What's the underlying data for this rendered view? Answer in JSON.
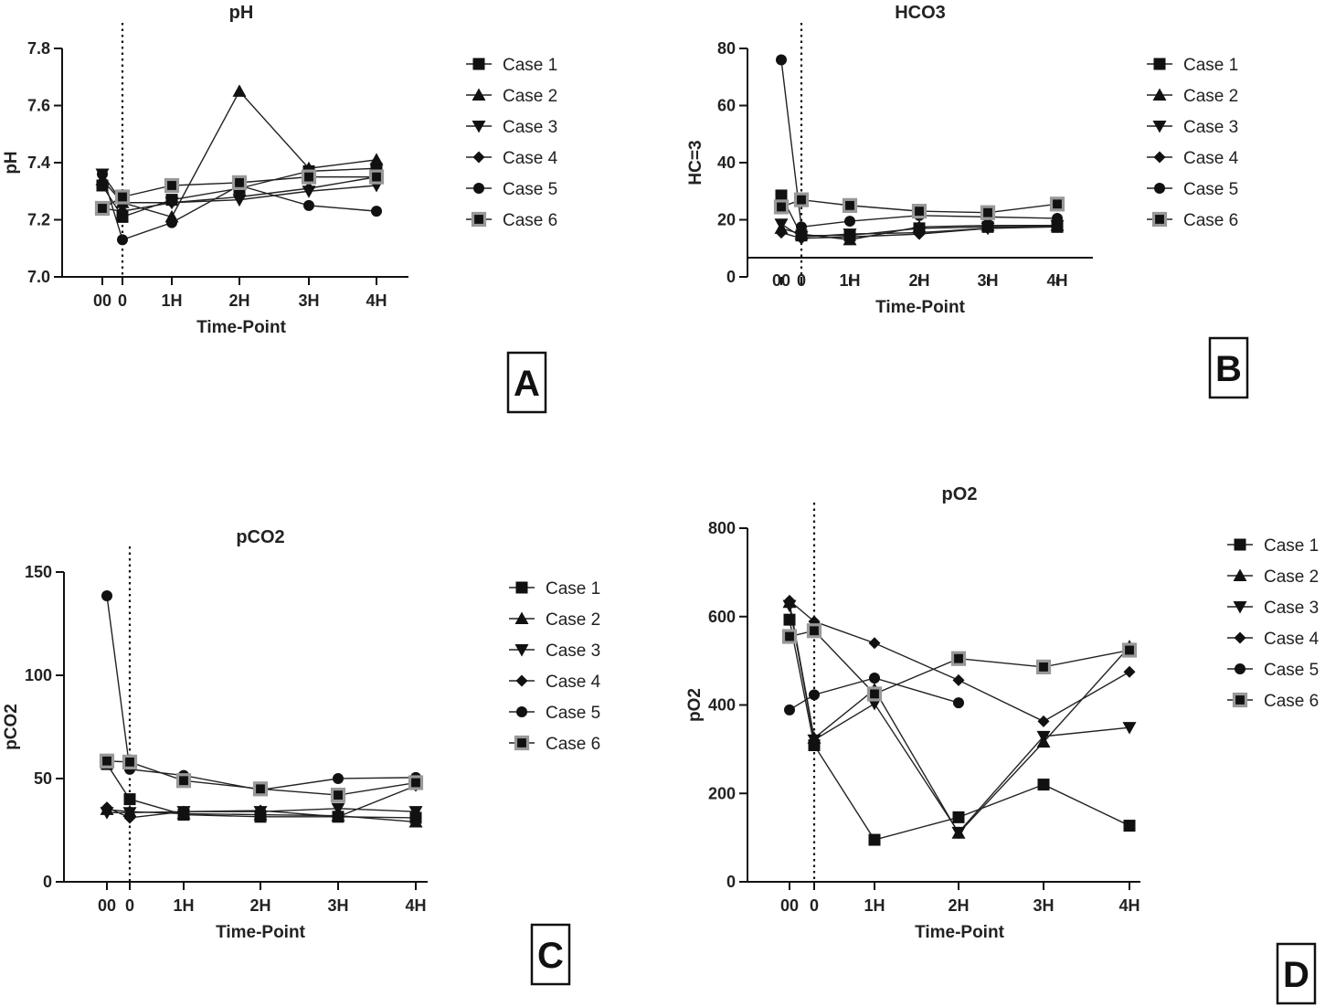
{
  "panel_labels": [
    "A",
    "B",
    "C",
    "D"
  ],
  "colors": {
    "marker": "#111111",
    "line": "#222222",
    "case6_fill": "#999999"
  },
  "chart_data": [
    {
      "type": "line",
      "title": "pH",
      "ylabel": "pH",
      "xlabel": "Time-Point",
      "categories": [
        "00",
        "0",
        "1H",
        "2H",
        "3H",
        "4H"
      ],
      "ylim": [
        7.0,
        7.8
      ],
      "yticks": [
        "7.0",
        "7.2",
        "7.4",
        "7.6",
        "7.8"
      ],
      "reference_line": "dotted vertical between 00 and 0",
      "series": [
        {
          "name": "Case 1",
          "marker": "square",
          "values": [
            7.32,
            7.21,
            7.27,
            7.31,
            7.37,
            7.38
          ]
        },
        {
          "name": "Case 2",
          "marker": "triangle-up",
          "values": [
            7.34,
            7.26,
            7.21,
            7.65,
            7.38,
            7.41
          ]
        },
        {
          "name": "Case 3",
          "marker": "triangle-down",
          "values": [
            7.36,
            7.26,
            7.26,
            7.27,
            7.3,
            7.32
          ]
        },
        {
          "name": "Case 4",
          "marker": "diamond",
          "values": [
            7.24,
            7.23,
            7.26,
            7.28,
            7.31,
            7.35
          ]
        },
        {
          "name": "Case 5",
          "marker": "circle",
          "values": [
            7.36,
            7.13,
            7.19,
            7.32,
            7.25,
            7.23
          ]
        },
        {
          "name": "Case 6",
          "marker": "square-gray",
          "values": [
            7.24,
            7.28,
            7.32,
            7.33,
            7.35,
            7.35
          ]
        }
      ]
    },
    {
      "type": "line",
      "title": "HCO3",
      "ylabel": "HC=3",
      "xlabel": "Time-Point",
      "categories": [
        "00",
        "0",
        "1H",
        "2H",
        "3H",
        "4H"
      ],
      "ylim": [
        0,
        80
      ],
      "yticks": [
        "0",
        "20",
        "40",
        "60",
        "80"
      ],
      "reference_line": "dotted vertical between 00 and 0",
      "series": [
        {
          "name": "Case 1",
          "marker": "square",
          "values": [
            28.5,
            14.5,
            14.5,
            17,
            17.5,
            17.5
          ]
        },
        {
          "name": "Case 2",
          "marker": "triangle-up",
          "values": [
            17,
            15,
            13,
            17.5,
            18,
            18
          ]
        },
        {
          "name": "Case 3",
          "marker": "triangle-down",
          "values": [
            18.5,
            14,
            15,
            15.5,
            17,
            18
          ]
        },
        {
          "name": "Case 4",
          "marker": "diamond",
          "values": [
            15.5,
            13.5,
            14,
            15,
            17,
            17.5
          ]
        },
        {
          "name": "Case 5",
          "marker": "circle",
          "values": [
            76,
            17.5,
            19.5,
            21.5,
            21,
            20.5
          ]
        },
        {
          "name": "Case 6",
          "marker": "square-gray",
          "values": [
            24.5,
            27,
            25,
            23,
            22.5,
            25.5
          ]
        }
      ]
    },
    {
      "type": "line",
      "title": "pCO2",
      "ylabel": "pCO2",
      "xlabel": "Time-Point",
      "categories": [
        "00",
        "0",
        "1H",
        "2H",
        "3H",
        "4H"
      ],
      "ylim": [
        0,
        150
      ],
      "yticks": [
        "0",
        "50",
        "100",
        "150"
      ],
      "reference_line": "dotted vertical between 00 and 0",
      "series": [
        {
          "name": "Case 1",
          "marker": "square",
          "values": [
            57,
            40,
            32.5,
            31.5,
            31.5,
            31
          ]
        },
        {
          "name": "Case 2",
          "marker": "triangle-up",
          "values": [
            35,
            34,
            33,
            32.5,
            32,
            29
          ]
        },
        {
          "name": "Case 3",
          "marker": "triangle-down",
          "values": [
            33.5,
            33.5,
            34,
            34,
            35.5,
            34
          ]
        },
        {
          "name": "Case 4",
          "marker": "diamond",
          "values": [
            36,
            31,
            34,
            34.5,
            31.5,
            46.5
          ]
        },
        {
          "name": "Case 5",
          "marker": "circle",
          "values": [
            138.5,
            54.5,
            51.5,
            44.5,
            50,
            50.5
          ]
        },
        {
          "name": "Case 6",
          "marker": "square-gray",
          "values": [
            58.5,
            58,
            49,
            45,
            42,
            48
          ]
        }
      ]
    },
    {
      "type": "line",
      "title": "pO2",
      "ylabel": "pO2",
      "xlabel": "Time-Point",
      "categories": [
        "00",
        "0",
        "1H",
        "2H",
        "3H",
        "4H"
      ],
      "ylim": [
        0,
        800
      ],
      "yticks": [
        "0",
        "200",
        "400",
        "600",
        "800"
      ],
      "reference_line": "dotted vertical between 00 and 0",
      "series": [
        {
          "name": "Case 1",
          "marker": "square",
          "values": [
            593,
            309,
            95,
            146,
            220,
            127
          ]
        },
        {
          "name": "Case 2",
          "marker": "triangle-up",
          "values": [
            632,
            325,
            435,
            110,
            316,
            532
          ]
        },
        {
          "name": "Case 3",
          "marker": "triangle-down",
          "values": [
            625,
            321,
            403,
            112,
            329,
            349
          ]
        },
        {
          "name": "Case 4",
          "marker": "diamond",
          "values": [
            636,
            589,
            540,
            456,
            363,
            475
          ]
        },
        {
          "name": "Case 5",
          "marker": "circle",
          "values": [
            389,
            423,
            461,
            405,
            null,
            null
          ]
        },
        {
          "name": "Case 6",
          "marker": "square-gray",
          "values": [
            555,
            568,
            425,
            505,
            486,
            524
          ]
        }
      ]
    }
  ]
}
